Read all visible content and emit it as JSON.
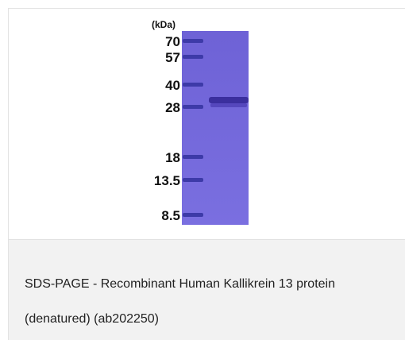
{
  "figure": {
    "unit_label": "(kDa)",
    "markers": [
      "70",
      "57",
      "40",
      "28",
      "18",
      "13.5",
      "8.5"
    ]
  },
  "caption": "SDS-PAGE - Recombinant Human Kallikrein 13 protein (denatured) (ab202250)"
}
